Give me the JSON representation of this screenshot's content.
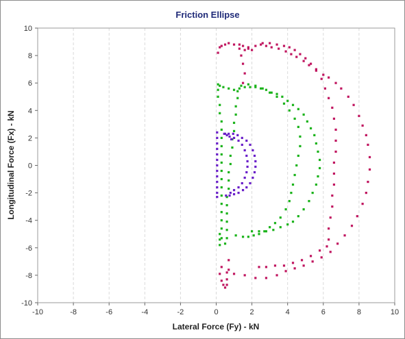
{
  "chart_data": {
    "type": "scatter",
    "title": "Friction Ellipse",
    "xlabel": "Lateral Force (Fy) - kN",
    "ylabel": "Longitudinal Force (Fx) - kN",
    "xlim": [
      -10,
      10
    ],
    "ylim": [
      -10,
      10
    ],
    "xticks": [
      -10,
      -8,
      -6,
      -4,
      -2,
      0,
      2,
      4,
      6,
      8,
      10
    ],
    "yticks": [
      -10,
      -8,
      -6,
      -4,
      -2,
      0,
      2,
      4,
      6,
      8,
      10
    ],
    "grid": "vertical",
    "legend": "none",
    "series": [
      {
        "color": "#c0155f",
        "points": [
          [
            0.1,
            8.2
          ],
          [
            0.2,
            8.6
          ],
          [
            0.3,
            8.7
          ],
          [
            0.5,
            8.8
          ],
          [
            0.7,
            8.9
          ],
          [
            1.0,
            8.8
          ],
          [
            1.3,
            8.8
          ],
          [
            1.5,
            8.7
          ],
          [
            1.8,
            8.6
          ],
          [
            2.0,
            8.4
          ],
          [
            2.2,
            8.7
          ],
          [
            2.5,
            8.8
          ],
          [
            2.8,
            8.7
          ],
          [
            3.1,
            8.6
          ],
          [
            3.5,
            8.5
          ],
          [
            3.9,
            8.3
          ],
          [
            4.2,
            8.1
          ],
          [
            4.5,
            7.9
          ],
          [
            4.9,
            7.6
          ],
          [
            5.2,
            7.3
          ],
          [
            5.6,
            6.9
          ],
          [
            6.0,
            6.6
          ],
          [
            6.3,
            6.4
          ],
          [
            6.7,
            6.0
          ],
          [
            7.0,
            5.6
          ],
          [
            7.4,
            5.0
          ],
          [
            7.7,
            4.4
          ],
          [
            8.0,
            3.6
          ],
          [
            8.2,
            2.9
          ],
          [
            8.4,
            2.2
          ],
          [
            8.5,
            1.5
          ],
          [
            8.6,
            0.6
          ],
          [
            8.6,
            -0.3
          ],
          [
            8.5,
            -1.2
          ],
          [
            8.4,
            -2.0
          ],
          [
            8.2,
            -2.8
          ],
          [
            7.9,
            -3.7
          ],
          [
            7.6,
            -4.4
          ],
          [
            7.2,
            -5.1
          ],
          [
            6.8,
            -5.7
          ],
          [
            6.4,
            -6.3
          ],
          [
            5.9,
            -6.7
          ],
          [
            5.4,
            -7.0
          ],
          [
            4.9,
            -7.3
          ],
          [
            4.4,
            -7.5
          ],
          [
            3.9,
            -7.7
          ],
          [
            3.4,
            -8.0
          ],
          [
            2.8,
            -8.2
          ],
          [
            2.2,
            -8.2
          ],
          [
            1.6,
            -8.0
          ],
          [
            1.0,
            -7.9
          ],
          [
            0.6,
            -7.8
          ],
          [
            1.6,
            8.4
          ],
          [
            1.8,
            8.5
          ],
          [
            2.6,
            8.9
          ],
          [
            3.0,
            8.9
          ],
          [
            3.4,
            8.8
          ],
          [
            3.8,
            8.7
          ],
          [
            4.1,
            8.6
          ],
          [
            4.4,
            8.4
          ],
          [
            4.7,
            8.1
          ],
          [
            5.0,
            7.8
          ],
          [
            5.3,
            7.4
          ],
          [
            5.6,
            7.0
          ],
          [
            5.9,
            6.3
          ],
          [
            6.1,
            5.6
          ],
          [
            6.3,
            4.9
          ],
          [
            6.5,
            4.2
          ],
          [
            6.6,
            3.4
          ],
          [
            6.7,
            2.6
          ],
          [
            6.7,
            1.8
          ],
          [
            6.7,
            1.0
          ],
          [
            6.6,
            0.2
          ],
          [
            6.6,
            -0.6
          ],
          [
            6.6,
            -1.4
          ],
          [
            6.5,
            -2.2
          ],
          [
            6.5,
            -3.0
          ],
          [
            6.4,
            -3.8
          ],
          [
            6.3,
            -4.6
          ],
          [
            6.3,
            -5.4
          ],
          [
            6.2,
            -5.9
          ],
          [
            5.8,
            -6.2
          ],
          [
            5.3,
            -6.6
          ],
          [
            4.8,
            -6.9
          ],
          [
            4.3,
            -7.1
          ],
          [
            3.8,
            -7.3
          ],
          [
            3.3,
            -7.3
          ],
          [
            2.8,
            -7.4
          ],
          [
            2.4,
            -7.4
          ],
          [
            1.3,
            8.5
          ],
          [
            1.4,
            8.0
          ],
          [
            1.5,
            7.4
          ],
          [
            1.6,
            6.7
          ],
          [
            1.5,
            6.0
          ],
          [
            0.3,
            -7.4
          ],
          [
            0.2,
            -7.9
          ],
          [
            0.3,
            -8.4
          ],
          [
            0.4,
            -8.7
          ],
          [
            0.5,
            -8.9
          ],
          [
            0.6,
            -8.7
          ],
          [
            0.6,
            -8.3
          ],
          [
            0.7,
            -7.6
          ],
          [
            0.7,
            -6.9
          ]
        ]
      },
      {
        "color": "#1bb31b",
        "points": [
          [
            0.1,
            5.9
          ],
          [
            0.1,
            5.5
          ],
          [
            0.1,
            5.0
          ],
          [
            0.2,
            4.4
          ],
          [
            0.2,
            3.8
          ],
          [
            0.3,
            3.2
          ],
          [
            0.3,
            2.6
          ],
          [
            0.3,
            2.0
          ],
          [
            0.3,
            1.4
          ],
          [
            0.3,
            0.8
          ],
          [
            0.3,
            0.2
          ],
          [
            0.3,
            -0.4
          ],
          [
            0.3,
            -1.0
          ],
          [
            0.3,
            -1.6
          ],
          [
            0.3,
            -2.2
          ],
          [
            0.3,
            -2.8
          ],
          [
            0.3,
            -3.4
          ],
          [
            0.3,
            -4.0
          ],
          [
            0.3,
            -4.6
          ],
          [
            0.2,
            -5.0
          ],
          [
            0.2,
            -5.4
          ],
          [
            0.2,
            -5.8
          ],
          [
            0.3,
            -5.3
          ],
          [
            0.2,
            5.8
          ],
          [
            0.4,
            5.7
          ],
          [
            0.7,
            5.6
          ],
          [
            1.0,
            5.5
          ],
          [
            1.3,
            5.6
          ],
          [
            1.6,
            5.7
          ],
          [
            1.9,
            5.7
          ],
          [
            2.2,
            5.7
          ],
          [
            2.5,
            5.6
          ],
          [
            2.8,
            5.5
          ],
          [
            3.1,
            5.3
          ],
          [
            3.4,
            5.2
          ],
          [
            3.7,
            5.0
          ],
          [
            4.0,
            4.7
          ],
          [
            4.3,
            4.4
          ],
          [
            4.6,
            4.1
          ],
          [
            4.9,
            3.7
          ],
          [
            5.1,
            3.2
          ],
          [
            5.3,
            2.7
          ],
          [
            5.5,
            2.2
          ],
          [
            5.6,
            1.6
          ],
          [
            5.7,
            1.0
          ],
          [
            5.8,
            0.4
          ],
          [
            5.8,
            -0.2
          ],
          [
            5.7,
            -0.8
          ],
          [
            5.6,
            -1.4
          ],
          [
            5.4,
            -2.0
          ],
          [
            5.2,
            -2.6
          ],
          [
            4.9,
            -3.2
          ],
          [
            4.6,
            -3.7
          ],
          [
            4.3,
            -4.1
          ],
          [
            4.0,
            -4.3
          ],
          [
            3.6,
            -4.5
          ],
          [
            3.2,
            -4.7
          ],
          [
            2.8,
            -4.8
          ],
          [
            2.4,
            -4.8
          ],
          [
            2.0,
            -4.8
          ],
          [
            1.4,
            5.8
          ],
          [
            1.8,
            5.9
          ],
          [
            2.2,
            5.8
          ],
          [
            2.6,
            5.6
          ],
          [
            3.0,
            5.3
          ],
          [
            3.4,
            5.0
          ],
          [
            3.8,
            4.5
          ],
          [
            4.1,
            4.0
          ],
          [
            4.4,
            3.4
          ],
          [
            4.6,
            2.8
          ],
          [
            4.7,
            2.1
          ],
          [
            4.7,
            1.4
          ],
          [
            4.6,
            0.7
          ],
          [
            4.5,
            0.0
          ],
          [
            4.4,
            -0.7
          ],
          [
            4.3,
            -1.4
          ],
          [
            4.2,
            -2.0
          ],
          [
            4.1,
            -2.6
          ],
          [
            3.9,
            -3.2
          ],
          [
            3.6,
            -3.8
          ],
          [
            3.3,
            -4.2
          ],
          [
            3.0,
            -4.5
          ],
          [
            2.7,
            -4.8
          ],
          [
            2.4,
            -5.0
          ],
          [
            2.1,
            -5.1
          ],
          [
            1.8,
            -5.2
          ],
          [
            1.5,
            -5.2
          ],
          [
            1.1,
            -5.1
          ],
          [
            1.2,
            5.4
          ],
          [
            1.2,
            4.9
          ],
          [
            1.1,
            4.3
          ],
          [
            1.1,
            3.7
          ],
          [
            1.0,
            3.1
          ],
          [
            1.0,
            2.5
          ],
          [
            0.9,
            1.9
          ],
          [
            0.9,
            1.3
          ],
          [
            0.8,
            0.7
          ],
          [
            0.8,
            0.1
          ],
          [
            0.7,
            -0.5
          ],
          [
            0.7,
            -1.1
          ],
          [
            0.7,
            -1.7
          ],
          [
            0.6,
            -2.3
          ],
          [
            0.6,
            -2.9
          ],
          [
            0.6,
            -3.5
          ],
          [
            0.6,
            -4.1
          ],
          [
            0.6,
            -4.7
          ],
          [
            0.6,
            -5.3
          ],
          [
            0.5,
            -5.7
          ]
        ]
      },
      {
        "color": "#6a1fc9",
        "points": [
          [
            0.05,
            2.4
          ],
          [
            0.05,
            2.0
          ],
          [
            0.05,
            1.6
          ],
          [
            0.05,
            1.2
          ],
          [
            0.05,
            0.8
          ],
          [
            0.05,
            0.4
          ],
          [
            0.05,
            0.0
          ],
          [
            0.05,
            -0.4
          ],
          [
            0.05,
            -0.8
          ],
          [
            0.05,
            -1.2
          ],
          [
            0.05,
            -1.6
          ],
          [
            0.05,
            -2.0
          ],
          [
            0.05,
            -2.3
          ],
          [
            0.45,
            2.3
          ],
          [
            0.7,
            2.3
          ],
          [
            0.95,
            2.3
          ],
          [
            1.2,
            2.2
          ],
          [
            1.45,
            2.0
          ],
          [
            1.7,
            1.8
          ],
          [
            1.9,
            1.5
          ],
          [
            2.05,
            1.1
          ],
          [
            2.15,
            0.7
          ],
          [
            2.2,
            0.3
          ],
          [
            2.2,
            -0.1
          ],
          [
            2.15,
            -0.5
          ],
          [
            2.05,
            -0.9
          ],
          [
            1.9,
            -1.3
          ],
          [
            1.7,
            -1.6
          ],
          [
            1.5,
            -1.8
          ],
          [
            1.25,
            -2.0
          ],
          [
            1.0,
            -2.1
          ],
          [
            0.75,
            -2.2
          ],
          [
            0.55,
            -2.2
          ],
          [
            1.0,
            2.0
          ],
          [
            1.25,
            1.8
          ],
          [
            1.45,
            1.5
          ],
          [
            1.6,
            1.1
          ],
          [
            1.7,
            0.7
          ],
          [
            1.75,
            0.3
          ],
          [
            1.75,
            -0.1
          ],
          [
            1.7,
            -0.5
          ],
          [
            1.6,
            -0.9
          ],
          [
            1.45,
            -1.3
          ],
          [
            1.25,
            -1.6
          ],
          [
            1.0,
            -1.8
          ],
          [
            0.8,
            -2.0
          ],
          [
            0.5,
            2.3
          ],
          [
            0.6,
            2.2
          ],
          [
            0.75,
            2.1
          ],
          [
            0.85,
            1.9
          ]
        ]
      }
    ]
  }
}
